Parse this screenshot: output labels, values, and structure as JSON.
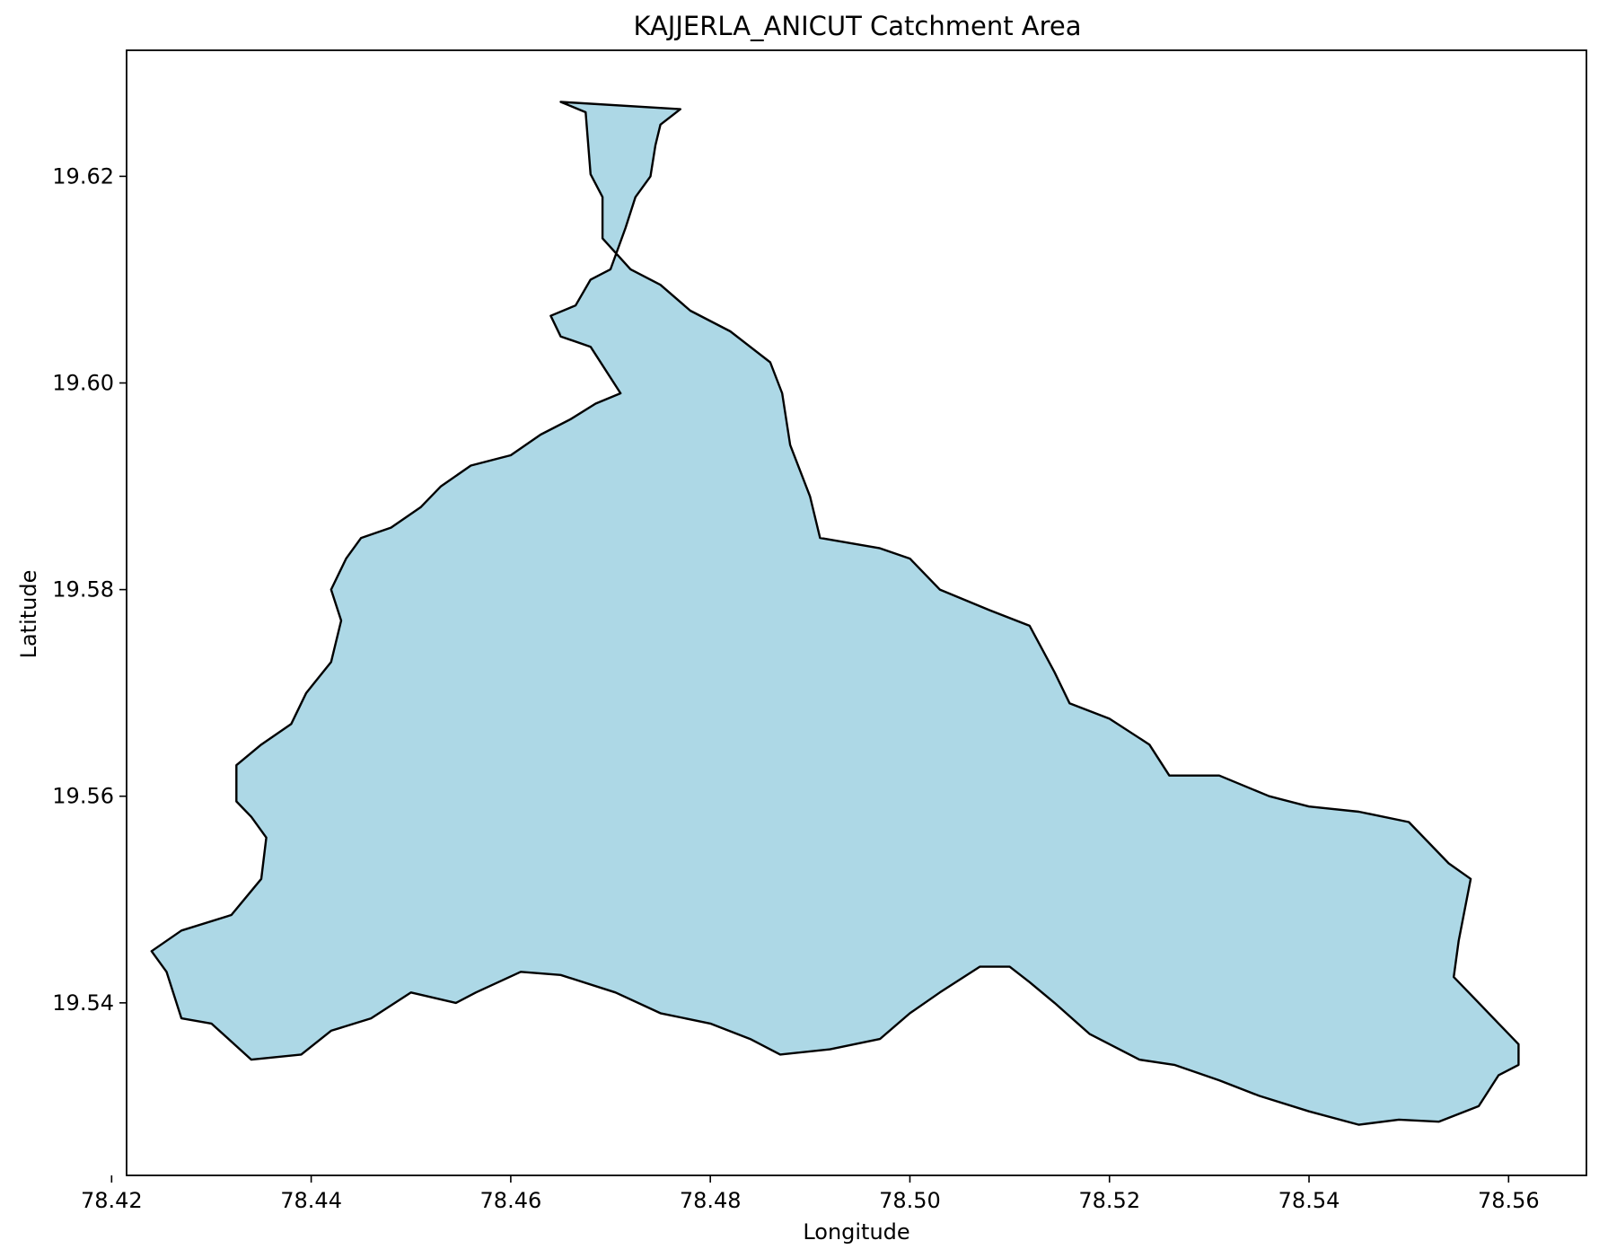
{
  "map": {
    "title": "KAJJERLA_ANICUT Catchment Area",
    "x_axis_label": "Longitude",
    "y_axis_label": "Latitude",
    "x_ticks": [
      "78.42",
      "78.44",
      "78.46",
      "78.48",
      "78.50",
      "78.52",
      "78.54",
      "78.56"
    ],
    "y_ticks": [
      "19.54",
      "19.56",
      "19.58",
      "19.60",
      "19.62"
    ],
    "fill_color": "#add8e6",
    "edge_color": "#000000"
  },
  "chart_data": {
    "type": "map",
    "title": "KAJJERLA_ANICUT Catchment Area",
    "xlabel": "Longitude",
    "ylabel": "Latitude",
    "xlim": [
      78.4215,
      78.5678
    ],
    "ylim": [
      19.5233,
      19.6322
    ],
    "xticks": [
      78.42,
      78.44,
      78.46,
      78.48,
      78.5,
      78.52,
      78.54,
      78.56
    ],
    "yticks": [
      19.54,
      19.56,
      19.58,
      19.6,
      19.62
    ],
    "polygon_lon_lat": [
      [
        78.465,
        19.6272
      ],
      [
        78.4675,
        19.6262
      ],
      [
        78.468,
        19.6202
      ],
      [
        78.4692,
        19.618
      ],
      [
        78.4692,
        19.614
      ],
      [
        78.472,
        19.611
      ],
      [
        78.475,
        19.6095
      ],
      [
        78.478,
        19.607
      ],
      [
        78.482,
        19.605
      ],
      [
        78.486,
        19.602
      ],
      [
        78.4872,
        19.599
      ],
      [
        78.488,
        19.594
      ],
      [
        78.49,
        19.589
      ],
      [
        78.491,
        19.585
      ],
      [
        78.497,
        19.584
      ],
      [
        78.5,
        19.583
      ],
      [
        78.503,
        19.58
      ],
      [
        78.508,
        19.578
      ],
      [
        78.512,
        19.5765
      ],
      [
        78.5145,
        19.572
      ],
      [
        78.516,
        19.569
      ],
      [
        78.52,
        19.5675
      ],
      [
        78.524,
        19.565
      ],
      [
        78.526,
        19.562
      ],
      [
        78.531,
        19.562
      ],
      [
        78.536,
        19.56
      ],
      [
        78.54,
        19.559
      ],
      [
        78.545,
        19.5585
      ],
      [
        78.55,
        19.5575
      ],
      [
        78.554,
        19.5535
      ],
      [
        78.5562,
        19.552
      ],
      [
        78.555,
        19.546
      ],
      [
        78.5545,
        19.5425
      ],
      [
        78.556,
        19.541
      ],
      [
        78.559,
        19.538
      ],
      [
        78.561,
        19.536
      ],
      [
        78.561,
        19.534
      ],
      [
        78.559,
        19.533
      ],
      [
        78.557,
        19.53
      ],
      [
        78.553,
        19.5285
      ],
      [
        78.549,
        19.5287
      ],
      [
        78.545,
        19.5282
      ],
      [
        78.54,
        19.5295
      ],
      [
        78.535,
        19.531
      ],
      [
        78.531,
        19.5325
      ],
      [
        78.5265,
        19.534
      ],
      [
        78.523,
        19.5345
      ],
      [
        78.518,
        19.537
      ],
      [
        78.5145,
        19.54
      ],
      [
        78.512,
        19.542
      ],
      [
        78.51,
        19.5435
      ],
      [
        78.507,
        19.5435
      ],
      [
        78.503,
        19.541
      ],
      [
        78.5,
        19.539
      ],
      [
        78.497,
        19.5365
      ],
      [
        78.492,
        19.5355
      ],
      [
        78.487,
        19.535
      ],
      [
        78.484,
        19.5365
      ],
      [
        78.48,
        19.538
      ],
      [
        78.475,
        19.539
      ],
      [
        78.4705,
        19.541
      ],
      [
        78.465,
        19.5427
      ],
      [
        78.461,
        19.543
      ],
      [
        78.4565,
        19.541
      ],
      [
        78.4545,
        19.54
      ],
      [
        78.45,
        19.541
      ],
      [
        78.446,
        19.5385
      ],
      [
        78.442,
        19.5373
      ],
      [
        78.439,
        19.535
      ],
      [
        78.434,
        19.5345
      ],
      [
        78.43,
        19.538
      ],
      [
        78.427,
        19.5385
      ],
      [
        78.4255,
        19.543
      ],
      [
        78.424,
        19.545
      ],
      [
        78.427,
        19.547
      ],
      [
        78.432,
        19.5485
      ],
      [
        78.435,
        19.552
      ],
      [
        78.4355,
        19.556
      ],
      [
        78.434,
        19.558
      ],
      [
        78.4325,
        19.5595
      ],
      [
        78.4325,
        19.563
      ],
      [
        78.435,
        19.565
      ],
      [
        78.438,
        19.567
      ],
      [
        78.4395,
        19.57
      ],
      [
        78.442,
        19.573
      ],
      [
        78.443,
        19.577
      ],
      [
        78.442,
        19.58
      ],
      [
        78.4435,
        19.583
      ],
      [
        78.445,
        19.585
      ],
      [
        78.448,
        19.586
      ],
      [
        78.451,
        19.588
      ],
      [
        78.453,
        19.59
      ],
      [
        78.456,
        19.592
      ],
      [
        78.46,
        19.593
      ],
      [
        78.463,
        19.595
      ],
      [
        78.466,
        19.5965
      ],
      [
        78.4685,
        19.598
      ],
      [
        78.471,
        19.599
      ],
      [
        78.468,
        19.6035
      ],
      [
        78.465,
        19.6045
      ],
      [
        78.464,
        19.6065
      ],
      [
        78.4665,
        19.6075
      ],
      [
        78.468,
        19.61
      ],
      [
        78.47,
        19.611
      ],
      [
        78.4715,
        19.615
      ],
      [
        78.4725,
        19.618
      ],
      [
        78.474,
        19.62
      ],
      [
        78.4745,
        19.623
      ],
      [
        78.475,
        19.625
      ],
      [
        78.477,
        19.6265
      ]
    ]
  }
}
